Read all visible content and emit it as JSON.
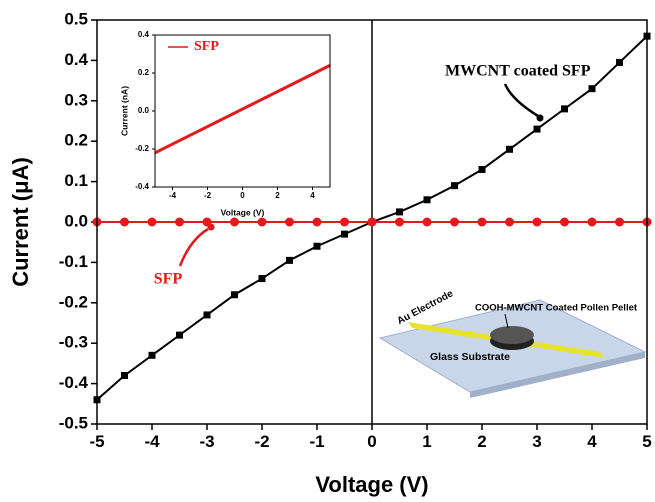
{
  "chart_data": [
    {
      "type": "line",
      "xlabel": "Voltage (V)",
      "ylabel": "Current (μA)",
      "xlim": [
        -5,
        5
      ],
      "xticks": [
        -5,
        -4,
        -3,
        -2,
        -1,
        0,
        1,
        2,
        3,
        4,
        5
      ],
      "ylim": [
        -0.5,
        0.5
      ],
      "yticks": [
        -0.5,
        -0.4,
        -0.3,
        -0.2,
        -0.1,
        {
          "value": 0,
          "label": "0.0"
        },
        0.1,
        0.2,
        0.3,
        0.4,
        0.5
      ],
      "series": [
        {
          "name": "MWCNT coated SFP",
          "color": "#000000",
          "marker": "square",
          "x": [
            -5,
            -4.5,
            -4,
            -3.5,
            -3,
            -2.5,
            -2,
            -1.5,
            -1,
            -0.5,
            0,
            0.5,
            1,
            1.5,
            2,
            2.5,
            3,
            3.5,
            4,
            4.5,
            5
          ],
          "values": [
            -0.44,
            -0.38,
            -0.33,
            -0.28,
            -0.23,
            -0.18,
            -0.14,
            -0.095,
            -0.06,
            -0.03,
            0,
            0.025,
            0.055,
            0.09,
            0.13,
            0.18,
            0.23,
            0.28,
            0.33,
            0.395,
            0.46
          ]
        },
        {
          "name": "SFP",
          "color": "#e31a1c",
          "marker": "circle",
          "x": [
            -5,
            -4.5,
            -4,
            -3.5,
            -3,
            -2.5,
            -2,
            -1.5,
            -1,
            -0.5,
            0,
            0.5,
            1,
            1.5,
            2,
            2.5,
            3,
            3.5,
            4,
            4.5,
            5
          ],
          "values": [
            0,
            0,
            0,
            0,
            0,
            0,
            0,
            0,
            0,
            0,
            0,
            0,
            0,
            0,
            0,
            0,
            0,
            0,
            0,
            0,
            0
          ]
        }
      ],
      "annotations": [
        "MWCNT coated SFP",
        "SFP"
      ]
    },
    {
      "type": "line",
      "xlabel": "Voltage (V)",
      "ylabel": "Current (nA)",
      "xlim": [
        -5,
        5
      ],
      "xticks": [
        -4,
        -2,
        0,
        2,
        4
      ],
      "ylim": [
        -0.4,
        0.4
      ],
      "yticks": [
        -0.4,
        -0.2,
        {
          "value": 0,
          "label": "0.0"
        },
        0.2,
        0.4
      ],
      "series": [
        {
          "name": "SFP",
          "color": "#e31a1c",
          "x": [
            -5,
            5
          ],
          "values": [
            -0.22,
            0.24
          ]
        }
      ]
    }
  ],
  "schematic": {
    "labels": [
      "Au Electrode",
      "COOH-MWCNT Coated Pollen Pellet",
      "Glass Substrate"
    ]
  }
}
